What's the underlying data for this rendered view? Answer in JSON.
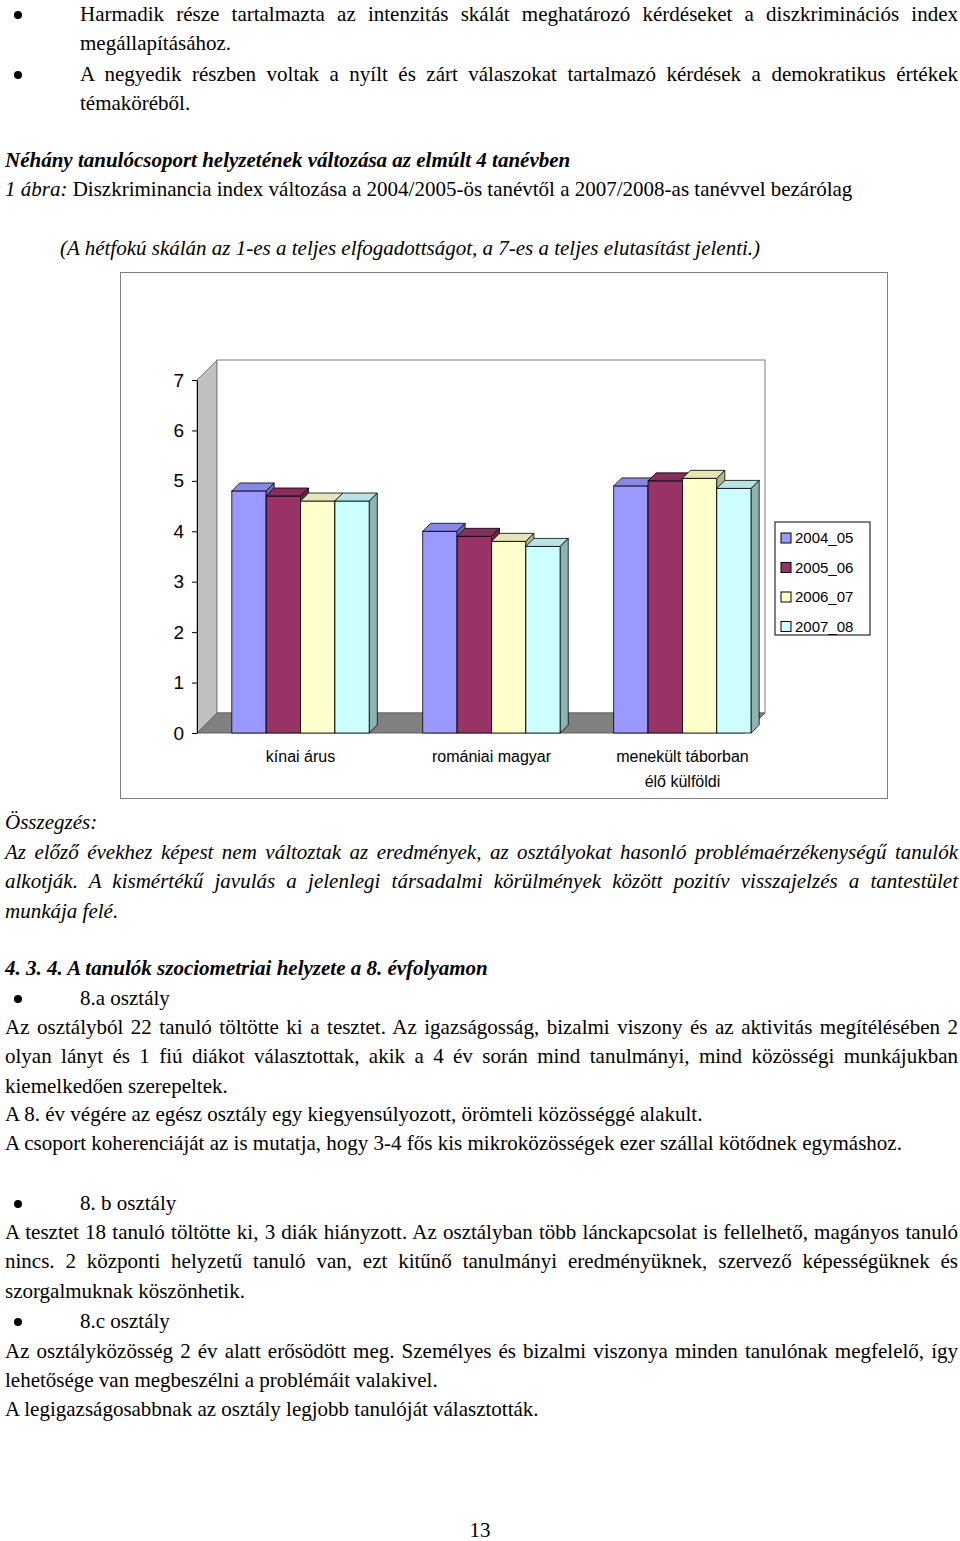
{
  "intro_bullets": [
    "Harmadik része tartalmazta az intenzitás skálát meghatározó kérdéseket a diszkriminációs index megállapításához.",
    "A negyedik részben voltak a nyílt és zárt válaszokat tartalmazó kérdések a demokratikus értékek témaköréből."
  ],
  "section_heading": "Néhány tanulócsoport helyzetének változása az elmúlt 4 tanévben",
  "figure": {
    "label": "1 ábra:",
    "caption": "Diszkriminancia index változása a 2004/2005-ös tanévtől a 2007/2008-as tanévvel bezárólag",
    "note": "(A hétfokú skálán az 1-es a teljes elfogadottságot, a 7-es a teljes elutasítást jelenti.)"
  },
  "chart_data": {
    "type": "bar",
    "categories": [
      "kínai árus",
      "romániai magyar",
      "menekült táborban\nélő külföldi"
    ],
    "series": [
      {
        "name": "2004_05",
        "color": "#9999ff",
        "values": [
          4.8,
          4.0,
          4.9
        ]
      },
      {
        "name": "2005_06",
        "color": "#993366",
        "values": [
          4.7,
          3.9,
          5.0
        ]
      },
      {
        "name": "2006_07",
        "color": "#ffffcc",
        "values": [
          4.6,
          3.8,
          5.05
        ]
      },
      {
        "name": "2007_08",
        "color": "#ccffff",
        "values": [
          4.6,
          3.7,
          4.85
        ]
      }
    ],
    "ylim": [
      0,
      7
    ],
    "yticks": [
      0,
      1,
      2,
      3,
      4,
      5,
      6,
      7
    ],
    "grid": false,
    "legend": "right"
  },
  "summary": {
    "heading": "Összegzés:",
    "text": "Az előző évekhez képest nem változtak az eredmények, az osztályokat hasonló problémaérzékenységű tanulók alkotják. A kismértékű javulás a jelenlegi társadalmi körülmények között pozitív visszajelzés a tantestület munkája felé."
  },
  "section2": {
    "heading": "4. 3. 4. A tanulók szociometriai helyzete a 8. évfolyamon",
    "classes": [
      {
        "name": "8.a osztály",
        "paragraphs": [
          "Az osztályból 22 tanuló töltötte ki a tesztet. Az igazságosság, bizalmi viszony és az aktivitás megítélésében 2 olyan lányt és 1 fiú diákot választottak, akik a 4 év során mind tanulmányi, mind közösségi munkájukban kiemelkedően szerepeltek.",
          "A 8. év végére az egész osztály egy kiegyensúlyozott, örömteli közösséggé alakult.",
          "A csoport koherenciáját az is mutatja, hogy 3-4 fős kis mikroközösségek ezer szállal kötődnek egymáshoz."
        ]
      },
      {
        "name": "8. b osztály",
        "paragraphs": [
          "A tesztet 18 tanuló töltötte ki, 3 diák hiányzott. Az osztályban több lánckapcsolat is fellelhető, magányos tanuló nincs. 2 központi helyzetű tanuló van, ezt kitűnő tanulmányi eredményüknek, szervező képességüknek és szorgalmuknak köszönhetik."
        ]
      },
      {
        "name": "8.c osztály",
        "paragraphs": [
          "Az osztályközösség 2 év alatt erősödött meg. Személyes és bizalmi viszonya minden tanulónak megfelelő, így lehetősége van megbeszélni a problémáit valakivel.",
          "A legigazságosabbnak az osztály legjobb tanulóját választották."
        ]
      }
    ]
  },
  "page_number": "13"
}
